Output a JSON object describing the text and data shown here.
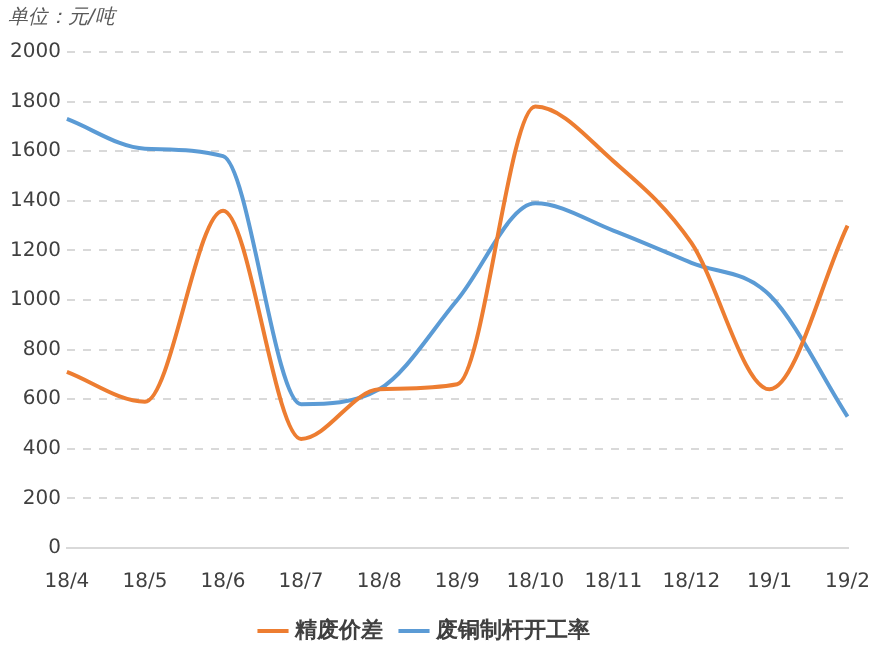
{
  "chart_data": {
    "type": "line",
    "annotations": [
      "单位：元/吨"
    ],
    "categories": [
      "18/4",
      "18/5",
      "18/6",
      "18/7",
      "18/8",
      "18/9",
      "18/10",
      "18/11",
      "18/12",
      "19/1",
      "19/2"
    ],
    "series": [
      {
        "name": "精废价差",
        "color": "#ed7d31",
        "values": [
          710,
          590,
          1360,
          440,
          640,
          660,
          1780,
          1560,
          1230,
          640,
          1300
        ]
      },
      {
        "name": "废铜制杆开工率",
        "color": "#5b9bd5",
        "values": [
          1730,
          1610,
          1580,
          580,
          640,
          1000,
          1390,
          1280,
          1150,
          1020,
          530
        ]
      }
    ],
    "ylim": [
      0,
      2000
    ],
    "yticks": [
      0,
      200,
      400,
      600,
      800,
      1000,
      1200,
      1400,
      1600,
      1800,
      2000
    ],
    "grid": "y",
    "legend": "bottom",
    "marker": "none",
    "line_style": "solid"
  }
}
